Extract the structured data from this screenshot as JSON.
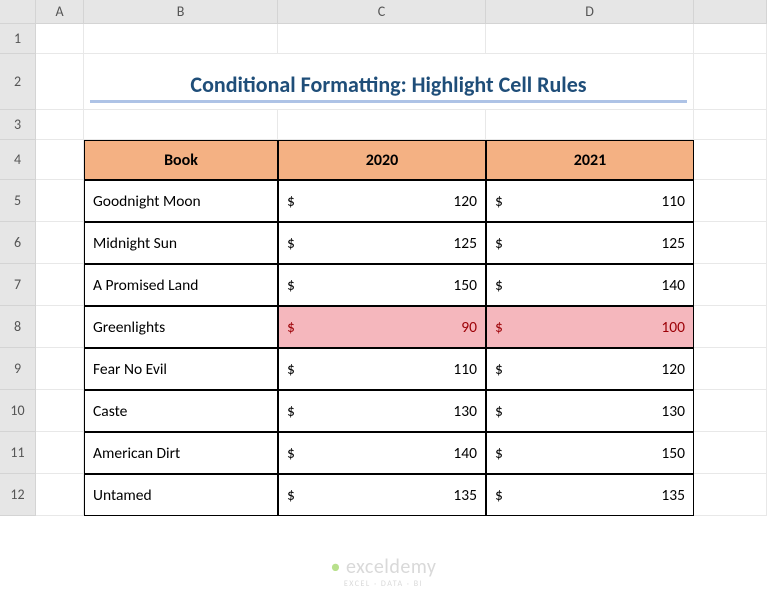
{
  "columns": [
    "",
    "A",
    "B",
    "C",
    "D",
    ""
  ],
  "rows": [
    "1",
    "2",
    "3",
    "4",
    "5",
    "6",
    "7",
    "8",
    "9",
    "10",
    "11",
    "12"
  ],
  "title": "Conditional Formatting: Highlight Cell Rules",
  "headers": {
    "book": "Book",
    "y2020": "2020",
    "y2021": "2021"
  },
  "data": [
    {
      "book": "Goodnight Moon",
      "y2020": "120",
      "y2021": "110",
      "hl": false
    },
    {
      "book": "Midnight Sun",
      "y2020": "125",
      "y2021": "125",
      "hl": false
    },
    {
      "book": "A Promised Land",
      "y2020": "150",
      "y2021": "140",
      "hl": false
    },
    {
      "book": "Greenlights",
      "y2020": "90",
      "y2021": "100",
      "hl": true
    },
    {
      "book": "Fear No Evil",
      "y2020": "110",
      "y2021": "120",
      "hl": false
    },
    {
      "book": "Caste",
      "y2020": "130",
      "y2021": "130",
      "hl": false
    },
    {
      "book": "American Dirt",
      "y2020": "140",
      "y2021": "150",
      "hl": false
    },
    {
      "book": "Untamed",
      "y2020": "135",
      "y2021": "135",
      "hl": false
    }
  ],
  "currency": "$",
  "colors": {
    "header_bg": "#f4b183",
    "title_color": "#1f4e79",
    "title_underline": "#aec3e6",
    "highlight_bg": "#f5b7bd",
    "highlight_text": "#9c0006",
    "grid_bg": "#ffffff",
    "col_header_bg": "#e6e6e6"
  },
  "watermark": {
    "name": "exceldemy",
    "tag": "EXCEL · DATA · BI"
  }
}
